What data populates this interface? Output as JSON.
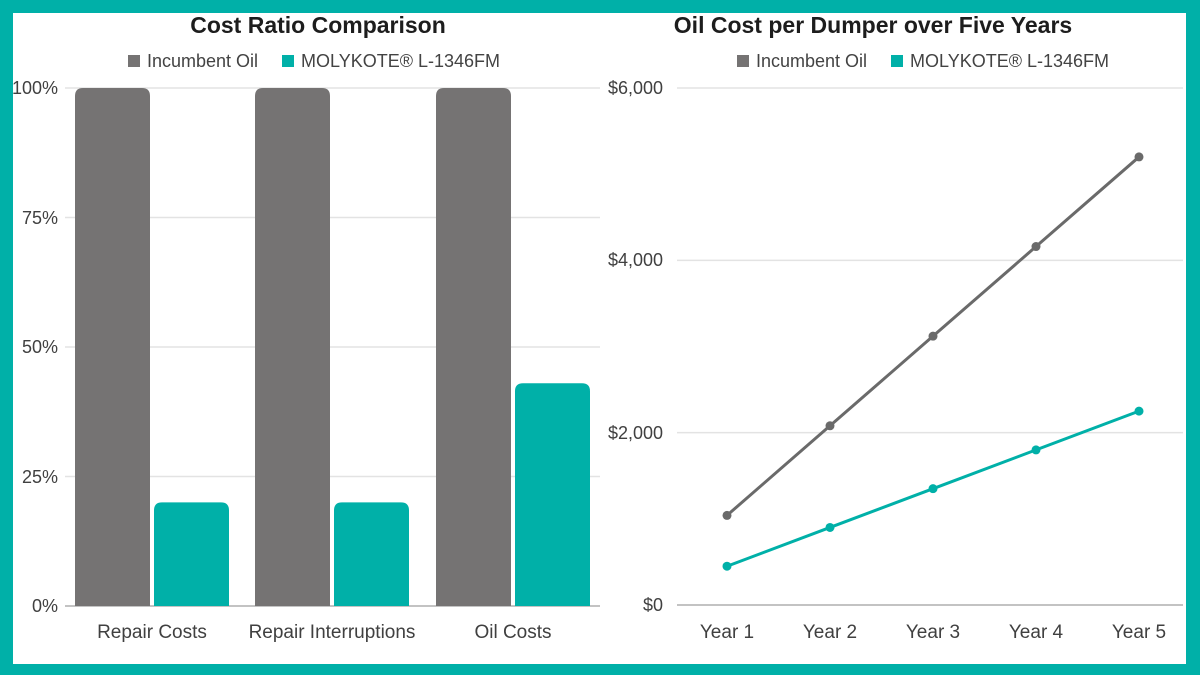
{
  "frame": {
    "border_color": "#00B0A8",
    "background": "#FFFFFF"
  },
  "colors": {
    "incumbent_gray": "#757373",
    "incumbent_line_gray": "#6A6A6A",
    "molykote_teal": "#00B0A8",
    "gridline": "#E3E3E3",
    "baseline": "#C3C3C3",
    "axis_text": "#404040",
    "title_text": "#1D1D1D"
  },
  "chart_data": [
    {
      "id": "cost-ratio",
      "type": "bar",
      "title": "Cost Ratio Comparison",
      "categories": [
        "Repair Costs",
        "Repair Interruptions",
        "Oil Costs"
      ],
      "series": [
        {
          "name": "Incumbent Oil",
          "color_key": "incumbent_gray",
          "values": [
            100,
            100,
            100
          ]
        },
        {
          "name": "MOLYKOTE® L-1346FM",
          "color_key": "molykote_teal",
          "values": [
            20,
            20,
            43
          ]
        }
      ],
      "unit": "%",
      "ylim": [
        0,
        100
      ],
      "y_ticks": [
        {
          "value": 100,
          "label": "100%"
        },
        {
          "value": 75,
          "label": "75%"
        },
        {
          "value": 50,
          "label": "50%"
        },
        {
          "value": 25,
          "label": "25%"
        },
        {
          "value": 0,
          "label": "0%"
        }
      ],
      "grid": true,
      "legend_position": "top"
    },
    {
      "id": "oil-cost",
      "type": "line",
      "title": "Oil Cost per Dumper over Five Years",
      "x": [
        "Year 1",
        "Year 2",
        "Year 3",
        "Year 4",
        "Year 5"
      ],
      "series": [
        {
          "name": "Incumbent Oil",
          "color_key": "incumbent_line_gray",
          "values": [
            1040,
            2080,
            3120,
            4160,
            5200
          ]
        },
        {
          "name": "MOLYKOTE® L-1346FM",
          "color_key": "molykote_teal",
          "values": [
            450,
            900,
            1350,
            1800,
            2250
          ]
        }
      ],
      "unit": "$",
      "ylim": [
        0,
        6000
      ],
      "y_ticks": [
        {
          "value": 6000,
          "label": "$6,000"
        },
        {
          "value": 4000,
          "label": "$4,000"
        },
        {
          "value": 2000,
          "label": "$2,000"
        },
        {
          "value": 0,
          "label": "$0"
        }
      ],
      "grid": true,
      "legend_position": "top"
    }
  ]
}
